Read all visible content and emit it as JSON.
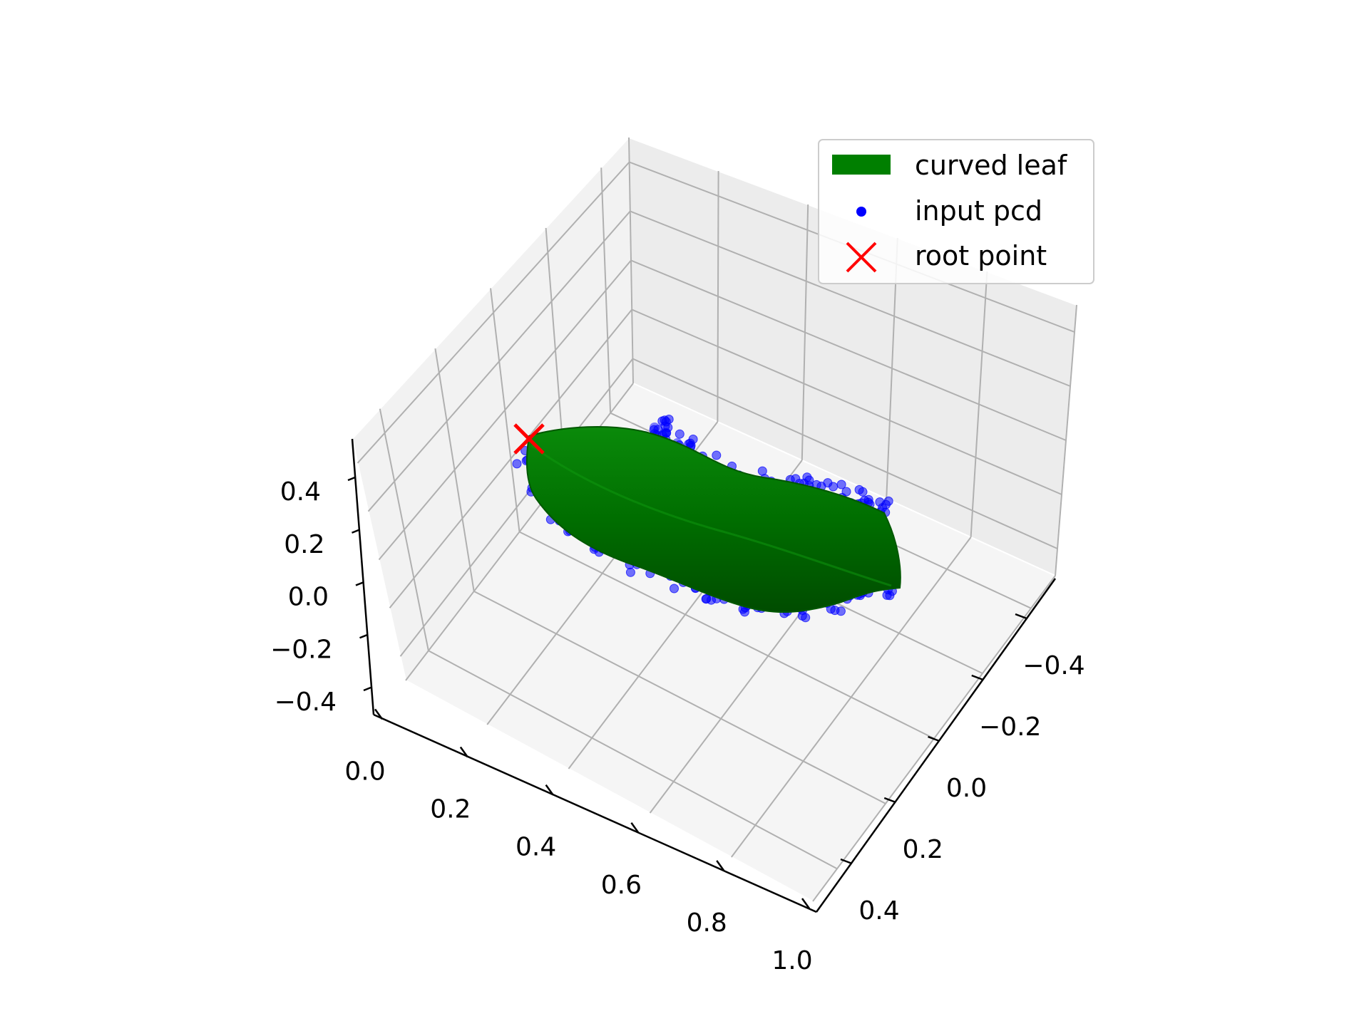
{
  "chart_data": {
    "type": "3d-scatter-surface",
    "title": "",
    "axes": {
      "x": {
        "label": "",
        "range": [
          0.0,
          1.0
        ],
        "ticks": [
          "0.0",
          "0.2",
          "0.4",
          "0.6",
          "0.8",
          "1.0"
        ]
      },
      "y": {
        "label": "",
        "range": [
          -0.5,
          0.5
        ],
        "ticks": [
          "−0.4",
          "−0.2",
          "0.0",
          "0.2",
          "0.4"
        ]
      },
      "z": {
        "label": "",
        "range": [
          -0.5,
          0.5
        ],
        "ticks": [
          "−0.4",
          "−0.2",
          "0.0",
          "0.2",
          "0.4"
        ]
      }
    },
    "grid": true,
    "legend_position": "upper-right",
    "legend": [
      {
        "label": "curved leaf",
        "kind": "patch",
        "color": "#007f00"
      },
      {
        "label": "input pcd",
        "kind": "dot",
        "color": "#0000ff"
      },
      {
        "label": "root point",
        "kind": "cross",
        "color": "#ff0000"
      }
    ],
    "series": [
      {
        "name": "curved leaf",
        "kind": "surface",
        "color": "#007f00"
      },
      {
        "name": "input pcd",
        "kind": "scatter",
        "color": "#0000ff"
      },
      {
        "name": "root point",
        "kind": "marker",
        "color": "#ff0000",
        "point": {
          "x": 0.0,
          "y": 0.0,
          "z": 0.0
        }
      }
    ]
  }
}
